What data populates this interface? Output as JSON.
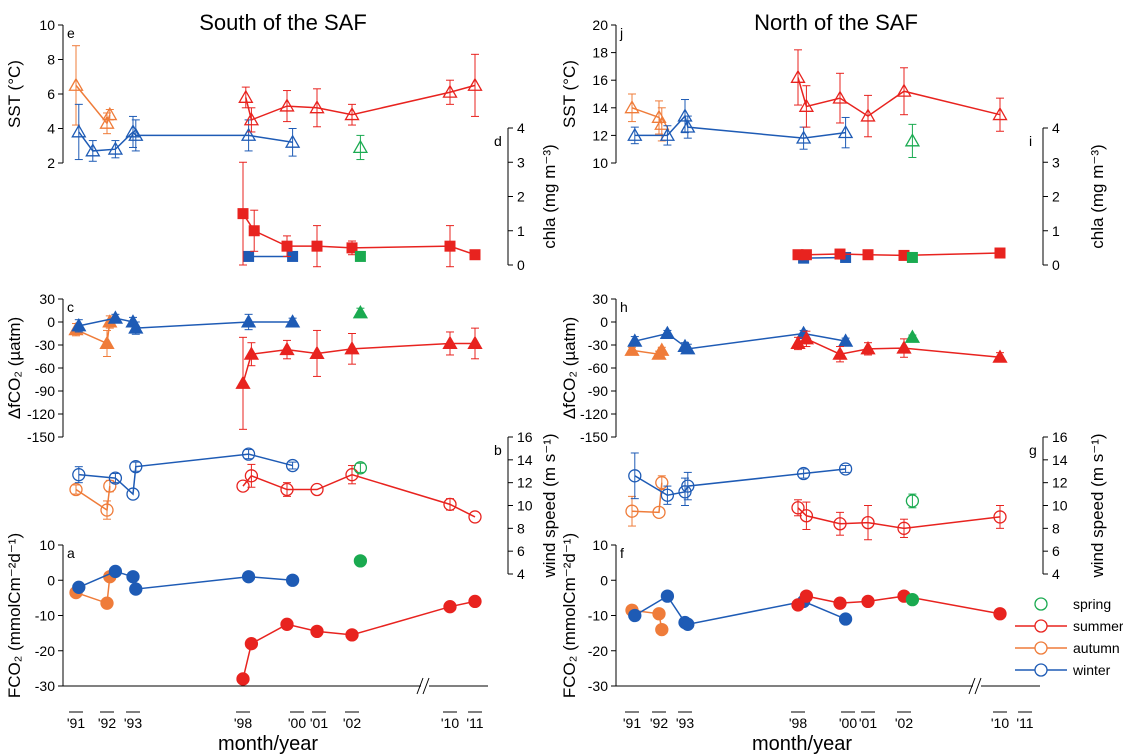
{
  "colors": {
    "spring": "#1aaa50",
    "summer": "#e8231f",
    "autumn": "#ef7c3a",
    "winter": "#1e5bb5",
    "axis": "#000000"
  },
  "figure": {
    "left_title": "South of the SAF",
    "right_title": "North of the SAF",
    "xlabel": "month/year",
    "years": [
      "'91",
      "'92",
      "'93",
      "'98",
      "'00",
      "'01",
      "'02",
      "'10",
      "'11"
    ],
    "legend": [
      "spring",
      "summer",
      "autumn",
      "winter"
    ],
    "y_labels": {
      "sst": "SST (°C)",
      "chla": "chla (mg m⁻³)",
      "dfco2": "ΔfCO₂ (µatm)",
      "wind": "wind speed (m s⁻¹)",
      "fco2": "FCO₂ (mmolCm⁻²d⁻¹)"
    }
  },
  "chart_data": [
    {
      "panel": "e",
      "type": "line",
      "title": "South of the SAF",
      "ylabel": "SST (°C)",
      "ylim": [
        2,
        10
      ],
      "series": [
        {
          "name": "summer",
          "x": [
            1998.1,
            1998.3,
            2000.0,
            2001.0,
            2002.0,
            2010.0,
            2011.0
          ],
          "y": [
            5.8,
            4.5,
            5.3,
            5.2,
            4.8,
            6.1,
            6.5
          ],
          "err": [
            0.6,
            0.7,
            0.9,
            1.1,
            0.6,
            0.7,
            1.8
          ]
        },
        {
          "name": "autumn",
          "x": [
            1991.0,
            1992.0,
            1992.1
          ],
          "y": [
            6.5,
            4.3,
            4.8
          ],
          "err": [
            2.3,
            0.6,
            0.3
          ]
        },
        {
          "name": "winter",
          "x": [
            1991.1,
            1991.6,
            1992.3,
            1993.0,
            1993.1,
            1998.2,
            2000.2
          ],
          "y": [
            3.8,
            2.7,
            2.8,
            3.8,
            3.6,
            3.6,
            3.2
          ],
          "err": [
            1.6,
            0.6,
            0.5,
            0.9,
            0.9,
            0.9,
            0.8
          ]
        },
        {
          "name": "spring",
          "x": [
            2002.3
          ],
          "y": [
            2.9
          ],
          "err": [
            0.7
          ]
        }
      ]
    },
    {
      "panel": "d",
      "type": "line",
      "ylabel": "chla (mg m⁻³)",
      "ylim": [
        0,
        4
      ],
      "series": [
        {
          "name": "summer",
          "x": [
            1998.0,
            1998.4,
            2000.0,
            2001.0,
            2002.0,
            2010.0,
            2011.0
          ],
          "y": [
            1.5,
            1.0,
            0.55,
            0.55,
            0.5,
            0.55,
            0.3
          ],
          "err": [
            1.5,
            0.6,
            0.3,
            0.6,
            0.2,
            0.6,
            0.1
          ]
        },
        {
          "name": "winter",
          "x": [
            1998.2,
            2000.2
          ],
          "y": [
            0.25,
            0.25
          ],
          "err": [
            0,
            0
          ]
        },
        {
          "name": "spring",
          "x": [
            2002.3
          ],
          "y": [
            0.25
          ],
          "err": [
            0
          ]
        }
      ]
    },
    {
      "panel": "c",
      "type": "line",
      "ylabel": "ΔfCO₂ (µatm)",
      "ylim": [
        -150,
        30
      ],
      "series": [
        {
          "name": "summer",
          "x": [
            1998.0,
            1998.3,
            2000.0,
            2001.0,
            2002.0,
            2010.0,
            2011.0
          ],
          "y": [
            -80,
            -42,
            -36,
            -41,
            -35,
            -28,
            -28
          ],
          "err": [
            60,
            15,
            12,
            30,
            20,
            15,
            20
          ]
        },
        {
          "name": "autumn",
          "x": [
            1991.0,
            1992.0,
            1992.1
          ],
          "y": [
            -10,
            -28,
            0
          ],
          "err": [
            8,
            17,
            8
          ]
        },
        {
          "name": "winter",
          "x": [
            1991.1,
            1992.3,
            1993.0,
            1993.1,
            1998.2,
            2000.2
          ],
          "y": [
            -5,
            5,
            0,
            -8,
            0,
            0
          ],
          "err": [
            8,
            5,
            6,
            8,
            10,
            5
          ]
        },
        {
          "name": "spring",
          "x": [
            2002.3
          ],
          "y": [
            12
          ],
          "err": [
            6
          ]
        }
      ]
    },
    {
      "panel": "b",
      "type": "line",
      "ylabel": "wind speed (m s⁻¹)",
      "ylim": [
        4,
        16
      ],
      "series": [
        {
          "name": "summer",
          "x": [
            1998.0,
            1998.3,
            2000.0,
            2001.0,
            2002.0,
            2010.0,
            2011.0
          ],
          "y": [
            11.7,
            12.6,
            11.4,
            11.4,
            12.7,
            10.1,
            9.0
          ],
          "err": [
            0,
            1.0,
            0.6,
            0,
            0.8,
            0.5,
            0
          ]
        },
        {
          "name": "autumn",
          "x": [
            1991.0,
            1992.0,
            1992.1
          ],
          "y": [
            11.4,
            9.6,
            11.7
          ],
          "err": [
            0.4,
            0.8,
            0.5
          ]
        },
        {
          "name": "winter",
          "x": [
            1991.1,
            1992.3,
            1993.0,
            1993.1,
            1998.2,
            2000.2
          ],
          "y": [
            12.7,
            12.4,
            11.0,
            13.4,
            14.5,
            13.5
          ],
          "err": [
            0.7,
            0.4,
            0,
            0.4,
            0.4,
            0.3
          ]
        },
        {
          "name": "spring",
          "x": [
            2002.3
          ],
          "y": [
            13.3
          ],
          "err": [
            0.4
          ]
        }
      ]
    },
    {
      "panel": "a",
      "type": "line",
      "ylabel": "FCO₂ (mmolCm⁻²d⁻¹)",
      "ylim": [
        -30,
        10
      ],
      "series": [
        {
          "name": "summer",
          "x": [
            1998.0,
            1998.3,
            2000.0,
            2001.0,
            2002.0,
            2010.0,
            2011.0
          ],
          "y": [
            -28,
            -18,
            -12.5,
            -14.5,
            -15.5,
            -7.5,
            -6
          ],
          "err": [
            0,
            0,
            0,
            0,
            0,
            0,
            0
          ]
        },
        {
          "name": "autumn",
          "x": [
            1991.0,
            1992.0,
            1992.1
          ],
          "y": [
            -3.5,
            -6.5,
            1
          ],
          "err": [
            0,
            0,
            0
          ]
        },
        {
          "name": "winter",
          "x": [
            1991.1,
            1992.3,
            1993.0,
            1993.1,
            1998.2,
            2000.2
          ],
          "y": [
            -2,
            2.5,
            1,
            -2.5,
            1,
            0
          ],
          "err": [
            0,
            0,
            0,
            0,
            0,
            0
          ]
        },
        {
          "name": "spring",
          "x": [
            2002.3
          ],
          "y": [
            5.5
          ],
          "err": [
            0
          ]
        }
      ]
    },
    {
      "panel": "j",
      "type": "line",
      "title": "North of the SAF",
      "ylabel": "SST (°C)",
      "ylim": [
        10,
        20
      ],
      "series": [
        {
          "name": "summer",
          "x": [
            1998.0,
            1998.3,
            2000.0,
            2001.0,
            2002.0,
            2010.0
          ],
          "y": [
            16.2,
            14.1,
            14.7,
            13.4,
            15.2,
            13.5
          ],
          "err": [
            2.0,
            1.5,
            1.8,
            1.5,
            1.7,
            1.2
          ]
        },
        {
          "name": "autumn",
          "x": [
            1991.0,
            1992.0,
            1992.1
          ],
          "y": [
            14.0,
            13.3,
            12.8
          ],
          "err": [
            1.0,
            1.2,
            1.2
          ]
        },
        {
          "name": "winter",
          "x": [
            1991.1,
            1992.3,
            1993.0,
            1993.1,
            1998.2,
            2000.2
          ],
          "y": [
            12.0,
            12.0,
            13.4,
            12.6,
            11.8,
            12.2
          ],
          "err": [
            0.6,
            0.7,
            1.2,
            0.8,
            0.8,
            1.1
          ]
        },
        {
          "name": "spring",
          "x": [
            2002.3
          ],
          "y": [
            11.6
          ],
          "err": [
            1.2
          ]
        }
      ]
    },
    {
      "panel": "i",
      "type": "line",
      "ylabel": "chla (mg m⁻³)",
      "ylim": [
        0,
        4
      ],
      "series": [
        {
          "name": "summer",
          "x": [
            1998.0,
            1998.3,
            2000.0,
            2001.0,
            2002.0,
            2010.0
          ],
          "y": [
            0.3,
            0.3,
            0.32,
            0.3,
            0.28,
            0.35
          ],
          "err": [
            0,
            0,
            0,
            0,
            0,
            0
          ]
        },
        {
          "name": "winter",
          "x": [
            1998.2,
            2000.2
          ],
          "y": [
            0.2,
            0.22
          ],
          "err": [
            0,
            0
          ]
        },
        {
          "name": "spring",
          "x": [
            2002.3
          ],
          "y": [
            0.22
          ],
          "err": [
            0
          ]
        }
      ]
    },
    {
      "panel": "h",
      "type": "line",
      "ylabel": "ΔfCO₂ (µatm)",
      "ylim": [
        -150,
        30
      ],
      "series": [
        {
          "name": "summer",
          "x": [
            1998.0,
            1998.3,
            2000.0,
            2001.0,
            2002.0,
            2010.0
          ],
          "y": [
            -28,
            -22,
            -42,
            -35,
            -34,
            -46
          ],
          "err": [
            8,
            10,
            10,
            8,
            12,
            6
          ]
        },
        {
          "name": "autumn",
          "x": [
            1991.0,
            1992.0,
            1992.1
          ],
          "y": [
            -37,
            -42,
            -37
          ],
          "err": [
            4,
            4,
            4
          ]
        },
        {
          "name": "winter",
          "x": [
            1991.1,
            1992.3,
            1993.0,
            1993.1,
            1998.2,
            2000.2
          ],
          "y": [
            -25,
            -15,
            -32,
            -35,
            -15,
            -25
          ],
          "err": [
            6,
            4,
            5,
            6,
            4,
            4
          ]
        },
        {
          "name": "spring",
          "x": [
            2002.3
          ],
          "y": [
            -20
          ],
          "err": [
            3
          ]
        }
      ]
    },
    {
      "panel": "g",
      "type": "line",
      "ylabel": "wind speed (m s⁻¹)",
      "ylim": [
        4,
        16
      ],
      "series": [
        {
          "name": "summer",
          "x": [
            1998.0,
            1998.3,
            2000.0,
            2001.0,
            2002.0,
            2010.0
          ],
          "y": [
            9.8,
            9.1,
            8.4,
            8.5,
            8.0,
            9.0
          ],
          "err": [
            0.7,
            1.2,
            1.0,
            1.5,
            0.8,
            1.0
          ]
        },
        {
          "name": "autumn",
          "x": [
            1991.0,
            1992.0,
            1992.1
          ],
          "y": [
            9.5,
            9.4,
            12.0
          ],
          "err": [
            1.3,
            0,
            0.6
          ]
        },
        {
          "name": "winter",
          "x": [
            1991.1,
            1992.3,
            1993.0,
            1993.1,
            1998.2,
            2000.2
          ],
          "y": [
            12.6,
            10.9,
            11.2,
            11.7,
            12.8,
            13.2
          ],
          "err": [
            2.0,
            0.8,
            1.2,
            1.2,
            0.4,
            0.3
          ]
        },
        {
          "name": "spring",
          "x": [
            2002.3
          ],
          "y": [
            10.4
          ],
          "err": [
            0.6
          ]
        }
      ]
    },
    {
      "panel": "f",
      "type": "line",
      "ylabel": "FCO₂ (mmolCm⁻²d⁻¹)",
      "ylim": [
        -30,
        10
      ],
      "series": [
        {
          "name": "summer",
          "x": [
            1998.0,
            1998.3,
            2000.0,
            2001.0,
            2002.0,
            2010.0
          ],
          "y": [
            -7,
            -4.5,
            -6.5,
            -6,
            -4.5,
            -9.5
          ],
          "err": [
            0,
            0,
            0,
            0,
            0,
            0
          ]
        },
        {
          "name": "autumn",
          "x": [
            1991.0,
            1992.0,
            1992.1
          ],
          "y": [
            -8.5,
            -9.5,
            -14
          ],
          "err": [
            0,
            0,
            0
          ]
        },
        {
          "name": "winter",
          "x": [
            1991.1,
            1992.3,
            1993.0,
            1993.1,
            1998.2,
            2000.2
          ],
          "y": [
            -10,
            -4.5,
            -12,
            -12.5,
            -6,
            -11
          ],
          "err": [
            0,
            0,
            0,
            0,
            0,
            0
          ]
        },
        {
          "name": "spring",
          "x": [
            2002.3
          ],
          "y": [
            -5.5
          ],
          "err": [
            0
          ]
        }
      ]
    }
  ]
}
